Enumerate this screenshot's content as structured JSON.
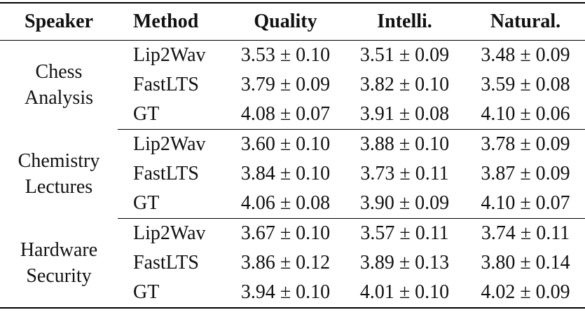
{
  "chart_data": {
    "type": "table",
    "columns": {
      "speaker": "Speaker",
      "method": "Method",
      "quality": "Quality",
      "intelli": "Intelli.",
      "natural": "Natural."
    },
    "groups": [
      {
        "speaker": "Chess Analysis",
        "speaker_line1": "Chess",
        "speaker_line2": "Analysis",
        "rows": [
          {
            "method": "Lip2Wav",
            "quality": "3.53 ± 0.10",
            "intelli": "3.51 ± 0.09",
            "natural": "3.48 ± 0.09"
          },
          {
            "method": "FastLTS",
            "quality": "3.79 ± 0.09",
            "intelli": "3.82 ± 0.10",
            "natural": "3.59 ± 0.08"
          },
          {
            "method": "GT",
            "quality": "4.08 ± 0.07",
            "intelli": "3.91 ± 0.08",
            "natural": "4.10 ± 0.06"
          }
        ]
      },
      {
        "speaker": "Chemistry Lectures",
        "speaker_line1": "Chemistry",
        "speaker_line2": "Lectures",
        "rows": [
          {
            "method": "Lip2Wav",
            "quality": "3.60 ± 0.10",
            "intelli": "3.88 ± 0.10",
            "natural": "3.78 ± 0.09"
          },
          {
            "method": "FastLTS",
            "quality": "3.84 ± 0.10",
            "intelli": "3.73 ± 0.11",
            "natural": "3.87 ± 0.09"
          },
          {
            "method": "GT",
            "quality": "4.06 ± 0.08",
            "intelli": "3.90 ± 0.09",
            "natural": "4.10 ± 0.07"
          }
        ]
      },
      {
        "speaker": "Hardware Security",
        "speaker_line1": "Hardware",
        "speaker_line2": "Security",
        "rows": [
          {
            "method": "Lip2Wav",
            "quality": "3.67 ± 0.10",
            "intelli": "3.57 ± 0.11",
            "natural": "3.74 ± 0.11"
          },
          {
            "method": "FastLTS",
            "quality": "3.86 ± 0.12",
            "intelli": "3.89 ± 0.13",
            "natural": "3.80 ± 0.14"
          },
          {
            "method": "GT",
            "quality": "3.94 ± 0.10",
            "intelli": "4.01 ± 0.10",
            "natural": "4.02 ± 0.09"
          }
        ]
      }
    ],
    "style": {
      "text_color": "#111111",
      "rule_color": "#000000",
      "background": "#ffffff"
    }
  }
}
